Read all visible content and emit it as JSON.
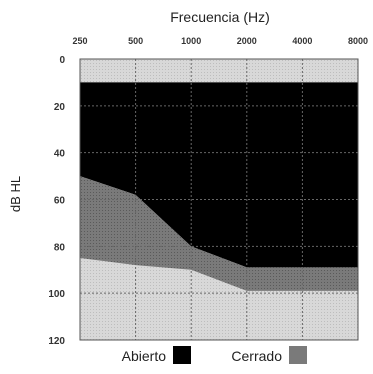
{
  "chart_data": {
    "type": "area",
    "title": "Frecuencia (Hz)",
    "xlabel": "",
    "ylabel": "dB HL",
    "x_categories": [
      "250",
      "500",
      "1000",
      "2000",
      "4000",
      "8000"
    ],
    "y_ticks": [
      0,
      20,
      40,
      60,
      80,
      100,
      120
    ],
    "ylim": [
      0,
      120
    ],
    "y_inverted": true,
    "grid": true,
    "legend_position": "bottom",
    "series": [
      {
        "name": "Abierto",
        "color": "#000000",
        "upper_db": [
          10,
          10,
          10,
          10,
          10,
          10
        ],
        "lower_db": [
          50,
          58,
          80,
          89,
          89,
          89
        ]
      },
      {
        "name": "Cerrado",
        "color": "#7a7a7a",
        "upper_db": [
          50,
          58,
          80,
          89,
          89,
          89
        ],
        "lower_db": [
          85,
          88,
          90,
          99,
          99,
          99
        ]
      }
    ],
    "background_color": "#dcdcdc"
  }
}
